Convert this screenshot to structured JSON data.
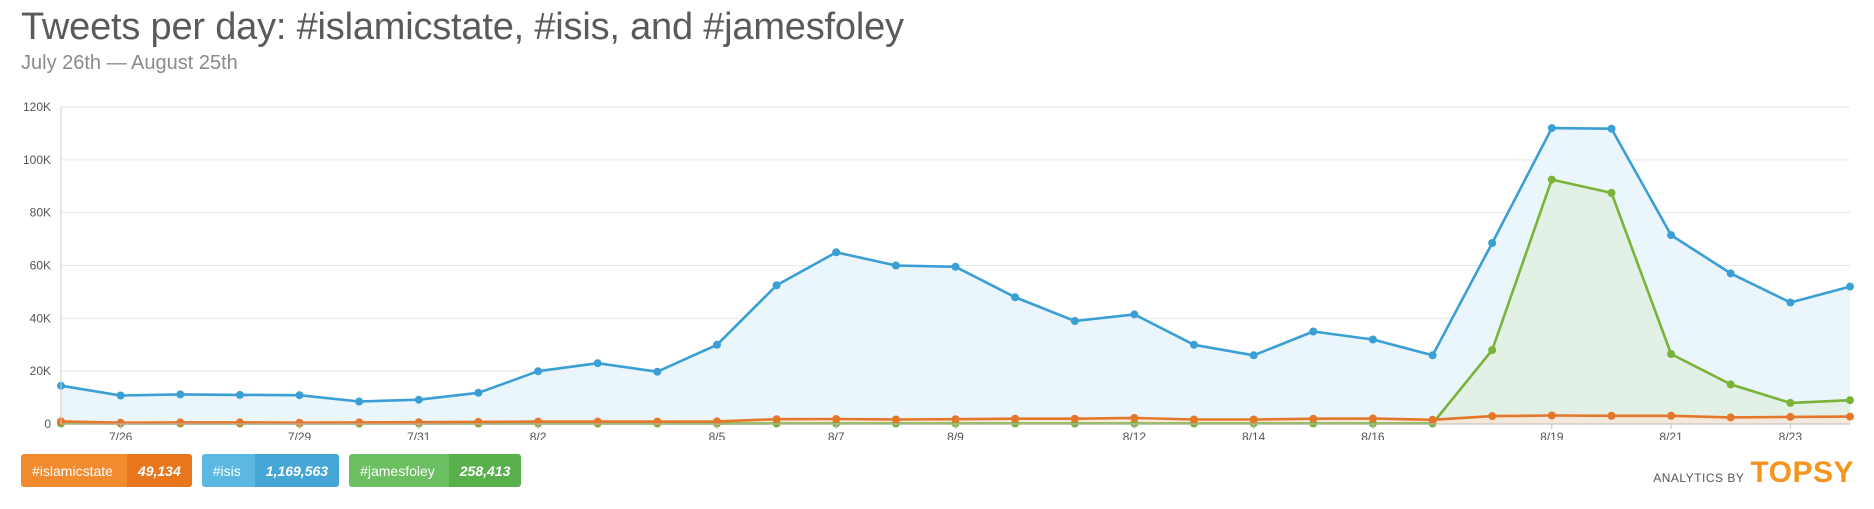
{
  "header": {
    "title": "Tweets per day: #islamicstate, #isis, and #jamesfoley",
    "subtitle": "July 26th — August 25th"
  },
  "legend": [
    {
      "name": "#islamicstate",
      "count": "49,134",
      "color": "#f28a2e",
      "count_color": "#e8761c"
    },
    {
      "name": "#isis",
      "count": "1,169,563",
      "color": "#5bb8e3",
      "count_color": "#45a6d6"
    },
    {
      "name": "#jamesfoley",
      "count": "258,413",
      "color": "#6cbf60",
      "count_color": "#58b04c"
    }
  ],
  "attribution": {
    "by": "ANALYTICS BY",
    "brand": "TOPSY"
  },
  "chart_data": {
    "type": "area",
    "x": [
      "7/25",
      "7/26",
      "7/27",
      "7/28",
      "7/29",
      "7/30",
      "7/31",
      "8/1",
      "8/2",
      "8/3",
      "8/4",
      "8/5",
      "8/6",
      "8/7",
      "8/8",
      "8/9",
      "8/10",
      "8/11",
      "8/12",
      "8/13",
      "8/14",
      "8/15",
      "8/16",
      "8/17",
      "8/18",
      "8/19",
      "8/20",
      "8/21",
      "8/22",
      "8/23",
      "8/24"
    ],
    "x_tick_labels": [
      "7/26",
      "7/29",
      "7/31",
      "8/2",
      "8/5",
      "8/7",
      "8/9",
      "8/12",
      "8/14",
      "8/16",
      "8/19",
      "8/21",
      "8/23"
    ],
    "y_ticks": [
      "0",
      "20K",
      "40K",
      "60K",
      "80K",
      "100K",
      "120K"
    ],
    "ylim": [
      0,
      120000
    ],
    "grid": true,
    "series": [
      {
        "name": "#isis",
        "color": "#3a9fd5",
        "fill": "#e8f4fb",
        "values": [
          14500,
          10800,
          11200,
          11000,
          10900,
          8500,
          9200,
          11800,
          20000,
          23000,
          19800,
          30000,
          52500,
          65000,
          60000,
          59500,
          48000,
          39000,
          41500,
          30000,
          26000,
          35000,
          32000,
          26000,
          68500,
          112000,
          111800,
          71500,
          57000,
          46000,
          52000
        ]
      },
      {
        "name": "#jamesfoley",
        "color": "#7ab338",
        "fill": "#e1efe2",
        "values": [
          200,
          150,
          150,
          150,
          150,
          150,
          150,
          150,
          150,
          150,
          150,
          150,
          200,
          200,
          200,
          200,
          200,
          200,
          200,
          200,
          200,
          200,
          200,
          200,
          28000,
          92500,
          87500,
          26500,
          15000,
          8000,
          9000
        ]
      },
      {
        "name": "#islamicstate",
        "color": "#e5772a",
        "fill": "#f6e6d6",
        "values": [
          1000,
          500,
          600,
          600,
          500,
          600,
          700,
          800,
          900,
          900,
          900,
          1000,
          1800,
          1900,
          1700,
          1800,
          2000,
          2000,
          2300,
          1700,
          1700,
          2000,
          2100,
          1600,
          3000,
          3200,
          3100,
          3100,
          2500,
          2700,
          2800
        ]
      }
    ]
  }
}
